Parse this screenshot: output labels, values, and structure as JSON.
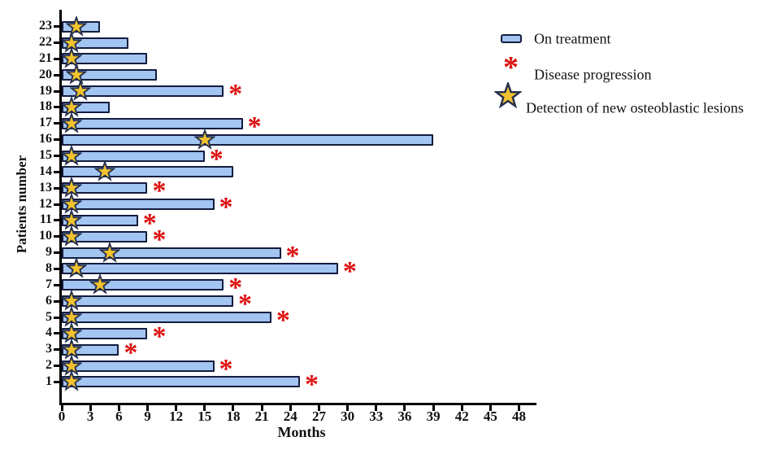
{
  "figure": {
    "background": "#ffffff",
    "colors": {
      "bar_fill": "#a2c5f1",
      "bar_border": "#141c3e",
      "star_fill": "#f2c22e",
      "star_border": "#26304f",
      "asterisk_red": "#de1010",
      "axis_black": "#000000",
      "text": "#111111"
    },
    "legend": [
      {
        "marker": "bar-swatch",
        "label": "On treatment"
      },
      {
        "marker": "red-asterisk",
        "label": "Disease progression"
      },
      {
        "marker": "gold-star",
        "label": "Detection of new osteoblastic lesions"
      }
    ]
  },
  "chart_data": {
    "type": "bar",
    "orientation": "horizontal",
    "title": "",
    "xlabel": "Months",
    "ylabel": "Patients number",
    "xlim": [
      0,
      48
    ],
    "x_ticks": [
      0,
      3,
      6,
      9,
      12,
      15,
      18,
      21,
      24,
      27,
      30,
      33,
      36,
      39,
      42,
      45,
      48
    ],
    "grid": false,
    "legend_position": "upper-right",
    "series_legend": [
      "On treatment",
      "Disease progression",
      "Detection of new osteoblastic lesions"
    ],
    "patients": [
      {
        "id": 23,
        "on_treatment_months": 4,
        "new_lesion_month": 1.5,
        "disease_progression": false
      },
      {
        "id": 22,
        "on_treatment_months": 7,
        "new_lesion_month": 1,
        "disease_progression": false
      },
      {
        "id": 21,
        "on_treatment_months": 9,
        "new_lesion_month": 1,
        "disease_progression": false
      },
      {
        "id": 20,
        "on_treatment_months": 10,
        "new_lesion_month": 1.5,
        "disease_progression": false
      },
      {
        "id": 19,
        "on_treatment_months": 17,
        "new_lesion_month": 2,
        "disease_progression": true
      },
      {
        "id": 18,
        "on_treatment_months": 5,
        "new_lesion_month": 1,
        "disease_progression": false
      },
      {
        "id": 17,
        "on_treatment_months": 19,
        "new_lesion_month": 1,
        "disease_progression": true
      },
      {
        "id": 16,
        "on_treatment_months": 39,
        "new_lesion_month": 15,
        "disease_progression": false
      },
      {
        "id": 15,
        "on_treatment_months": 15,
        "new_lesion_month": 1,
        "disease_progression": true
      },
      {
        "id": 14,
        "on_treatment_months": 18,
        "new_lesion_month": 4.5,
        "disease_progression": false
      },
      {
        "id": 13,
        "on_treatment_months": 9,
        "new_lesion_month": 1,
        "disease_progression": true
      },
      {
        "id": 12,
        "on_treatment_months": 16,
        "new_lesion_month": 1,
        "disease_progression": true
      },
      {
        "id": 11,
        "on_treatment_months": 8,
        "new_lesion_month": 1,
        "disease_progression": true
      },
      {
        "id": 10,
        "on_treatment_months": 9,
        "new_lesion_month": 1,
        "disease_progression": true
      },
      {
        "id": 9,
        "on_treatment_months": 23,
        "new_lesion_month": 5,
        "disease_progression": true
      },
      {
        "id": 8,
        "on_treatment_months": 29,
        "new_lesion_month": 1.5,
        "disease_progression": true
      },
      {
        "id": 7,
        "on_treatment_months": 17,
        "new_lesion_month": 4,
        "disease_progression": true
      },
      {
        "id": 6,
        "on_treatment_months": 18,
        "new_lesion_month": 1,
        "disease_progression": true
      },
      {
        "id": 5,
        "on_treatment_months": 22,
        "new_lesion_month": 1,
        "disease_progression": true
      },
      {
        "id": 4,
        "on_treatment_months": 9,
        "new_lesion_month": 1,
        "disease_progression": true
      },
      {
        "id": 3,
        "on_treatment_months": 6,
        "new_lesion_month": 1,
        "disease_progression": true
      },
      {
        "id": 2,
        "on_treatment_months": 16,
        "new_lesion_month": 1,
        "disease_progression": true
      },
      {
        "id": 1,
        "on_treatment_months": 25,
        "new_lesion_month": 1,
        "disease_progression": true
      }
    ]
  }
}
